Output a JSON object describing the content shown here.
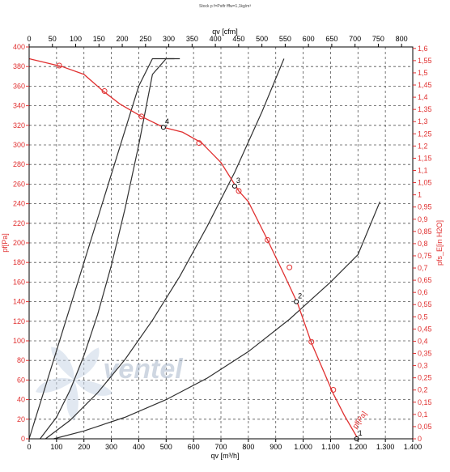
{
  "chart_data": {
    "type": "line",
    "title": "Stock p f=Pstfr fffw=1,1kg/m³",
    "x_bottom": {
      "label": "qv [m³/h]",
      "range": [
        0,
        1400
      ],
      "ticks": [
        "0",
        "100",
        "200",
        "300",
        "400",
        "500",
        "600",
        "700",
        "800",
        "900",
        "1.000",
        "1.100",
        "1.200",
        "1.300",
        "1.400"
      ],
      "tick_values": [
        0,
        100,
        200,
        300,
        400,
        500,
        600,
        700,
        800,
        900,
        1000,
        1100,
        1200,
        1300,
        1400
      ]
    },
    "x_top": {
      "label": "qv [cfm]",
      "range": [
        0,
        824
      ],
      "ticks": [
        "0",
        "50",
        "100",
        "150",
        "200",
        "250",
        "300",
        "350",
        "400",
        "450",
        "500",
        "550",
        "600",
        "650",
        "700",
        "750",
        "800"
      ],
      "tick_values": [
        0,
        50,
        100,
        150,
        200,
        250,
        300,
        350,
        400,
        450,
        500,
        550,
        600,
        650,
        700,
        750,
        800
      ]
    },
    "y_left": {
      "label": "pf[Pa]",
      "range": [
        0,
        400
      ],
      "ticks": [
        "0",
        "20",
        "40",
        "60",
        "80",
        "100",
        "120",
        "140",
        "160",
        "180",
        "200",
        "220",
        "240",
        "260",
        "280",
        "300",
        "320",
        "340",
        "360",
        "380",
        "400"
      ],
      "tick_values": [
        0,
        20,
        40,
        60,
        80,
        100,
        120,
        140,
        160,
        180,
        200,
        220,
        240,
        260,
        280,
        300,
        320,
        340,
        360,
        380,
        400
      ]
    },
    "y_right": {
      "label": "pfs_E[in H2O]",
      "range": [
        0,
        1.606
      ],
      "ticks": [
        "0",
        "0,05",
        "0,1",
        "0,15",
        "0,2",
        "0,25",
        "0,3",
        "0,35",
        "0,4",
        "0,45",
        "0,5",
        "0,55",
        "0,6",
        "0,65",
        "0,7",
        "0,75",
        "0,8",
        "0,85",
        "0,9",
        "0,95",
        "1",
        "1,05",
        "1,1",
        "1,15",
        "1,2",
        "1,25",
        "1,3",
        "1,35",
        "1,4",
        "1,45",
        "1,5",
        "1,55",
        "1,6"
      ],
      "tick_values": [
        0,
        0.05,
        0.1,
        0.15,
        0.2,
        0.25,
        0.3,
        0.35,
        0.4,
        0.45,
        0.5,
        0.55,
        0.6,
        0.65,
        0.7,
        0.75,
        0.8,
        0.85,
        0.9,
        0.95,
        1,
        1.05,
        1.1,
        1.15,
        1.2,
        1.25,
        1.3,
        1.35,
        1.4,
        1.45,
        1.5,
        1.55,
        1.6
      ]
    },
    "grid": true,
    "fan_curve": {
      "label": "pf[Pa]",
      "color": "#e03030",
      "x": [
        0,
        120,
        200,
        270,
        330,
        410,
        490,
        560,
        630,
        700,
        765,
        800,
        870,
        930,
        980,
        1030,
        1070,
        1110,
        1150,
        1200
      ],
      "y": [
        388,
        380,
        372,
        355,
        342,
        329,
        318,
        313,
        302,
        282,
        253,
        242,
        203,
        168,
        138,
        98,
        72,
        46,
        24,
        0
      ],
      "markers_x": [
        110,
        275,
        410,
        620,
        765,
        870,
        950,
        1030,
        1110
      ],
      "markers_y": [
        381,
        355,
        329,
        302,
        253,
        203,
        175,
        99,
        50
      ]
    },
    "system_curves": [
      {
        "point_label": "1",
        "color": "#303030",
        "x": [
          0,
          50,
          100,
          150,
          200,
          250,
          300,
          350,
          400,
          450,
          500,
          550
        ],
        "y": [
          0,
          45,
          90,
          135,
          180,
          225,
          270,
          315,
          360,
          405,
          450,
          495
        ]
      },
      {
        "point_label": "4",
        "color": "#303030",
        "x": [
          40,
          100,
          150,
          200,
          250,
          300,
          350,
          400,
          450,
          500,
          530
        ],
        "y": [
          0,
          22,
          50,
          85,
          127,
          177,
          235,
          300,
          372,
          460,
          520
        ]
      },
      {
        "point_label": "3",
        "color": "#303030",
        "x": [
          60,
          150,
          250,
          350,
          450,
          550,
          650,
          750,
          850,
          930
        ],
        "y": [
          0,
          19,
          47,
          81,
          121,
          166,
          217,
          272,
          334,
          388
        ]
      },
      {
        "point_label": "2",
        "color": "#303030",
        "x": [
          90,
          200,
          350,
          500,
          650,
          800,
          950,
          1100,
          1200,
          1280
        ],
        "y": [
          0,
          8,
          22,
          40,
          62,
          89,
          122,
          160,
          188,
          242
        ]
      }
    ],
    "operating_points": [
      {
        "label": "4",
        "x": 490,
        "y": 318
      },
      {
        "label": "3",
        "x": 750,
        "y": 258
      },
      {
        "label": "2",
        "x": 975,
        "y": 140
      },
      {
        "label": "1",
        "x": 1195,
        "y": 0
      }
    ],
    "watermark": "ventel"
  }
}
